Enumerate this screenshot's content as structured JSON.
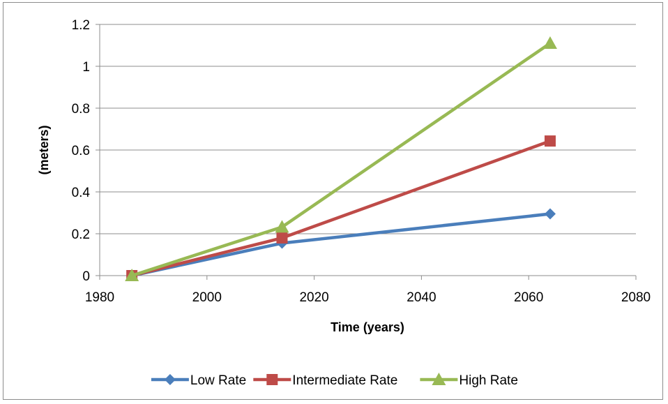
{
  "chart_data": {
    "type": "line",
    "title": "",
    "xlabel": "Time (years)",
    "ylabel": "(meters)",
    "xlim": [
      1980,
      2080
    ],
    "ylim": [
      0,
      1.2
    ],
    "x_ticks": [
      1980,
      2000,
      2020,
      2040,
      2060,
      2080
    ],
    "y_ticks": [
      0,
      0.2,
      0.4,
      0.6,
      0.8,
      1,
      1.2
    ],
    "x_tick_labels": [
      "1980",
      "2000",
      "2020",
      "2040",
      "2060",
      "2080"
    ],
    "y_tick_labels": [
      "0",
      "0.2",
      "0.4",
      "0.6",
      "0.8",
      "1",
      "1.2"
    ],
    "grid": "horizontal",
    "legend_position": "bottom",
    "series": [
      {
        "name": "Low Rate",
        "color": "#4a7ebb",
        "marker": "diamond",
        "x": [
          1986,
          2014,
          2064
        ],
        "values": [
          0,
          0.155,
          0.295
        ]
      },
      {
        "name": "Intermediate Rate",
        "color": "#be4b48",
        "marker": "square",
        "x": [
          1986,
          2014,
          2064
        ],
        "values": [
          0,
          0.18,
          0.643
        ]
      },
      {
        "name": "High Rate",
        "color": "#98b954",
        "marker": "triangle",
        "x": [
          1986,
          2014,
          2064
        ],
        "values": [
          0,
          0.232,
          1.11
        ]
      }
    ]
  }
}
